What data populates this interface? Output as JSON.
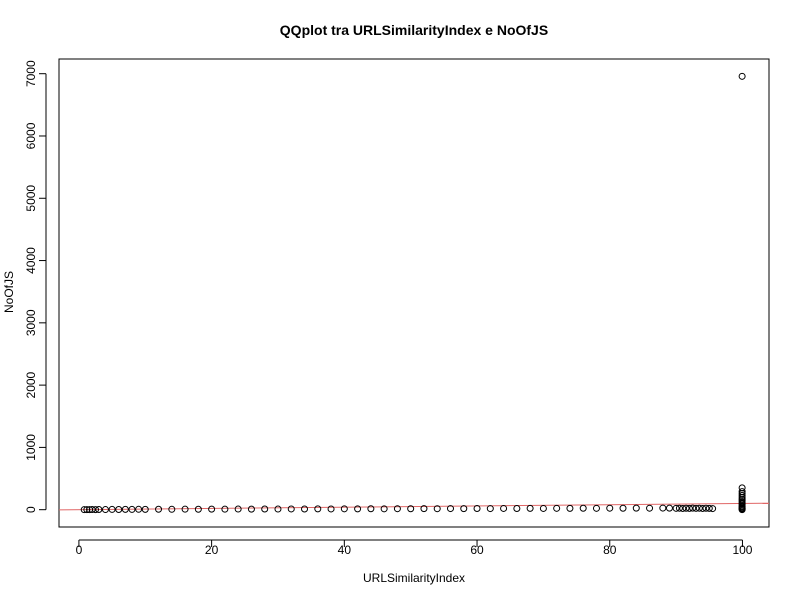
{
  "chart_data": {
    "type": "scatter",
    "title": "QQplot tra URLSimilarityIndex e NoOfJS",
    "xlabel": "URLSimilarityIndex",
    "ylabel": "NoOfJS",
    "xlim": [
      -3,
      104
    ],
    "ylim": [
      -278,
      7236
    ],
    "x_ticks": [
      0,
      20,
      40,
      60,
      80,
      100
    ],
    "y_ticks": [
      0,
      1000,
      2000,
      3000,
      4000,
      5000,
      6000,
      7000
    ],
    "grid": false,
    "legend": "none",
    "point_color": "#000000",
    "reference_line": {
      "color": "#e06666",
      "intercept": 0,
      "slope": 1
    },
    "series": [
      {
        "points": [
          [
            0.8,
            0
          ],
          [
            1.2,
            1
          ],
          [
            1.6,
            0
          ],
          [
            2,
            2
          ],
          [
            2.5,
            1
          ],
          [
            3,
            3
          ],
          [
            4,
            2
          ],
          [
            5,
            4
          ],
          [
            6,
            3
          ],
          [
            7,
            5
          ],
          [
            8,
            4
          ],
          [
            9,
            6
          ],
          [
            10,
            5
          ],
          [
            12,
            7
          ],
          [
            14,
            6
          ],
          [
            16,
            8
          ],
          [
            18,
            7
          ],
          [
            20,
            9
          ],
          [
            22,
            8
          ],
          [
            24,
            10
          ],
          [
            26,
            9
          ],
          [
            28,
            11
          ],
          [
            30,
            10
          ],
          [
            32,
            12
          ],
          [
            34,
            11
          ],
          [
            36,
            13
          ],
          [
            38,
            12
          ],
          [
            40,
            14
          ],
          [
            42,
            13
          ],
          [
            44,
            15
          ],
          [
            46,
            14
          ],
          [
            48,
            16
          ],
          [
            50,
            15
          ],
          [
            52,
            17
          ],
          [
            54,
            16
          ],
          [
            56,
            18
          ],
          [
            58,
            17
          ],
          [
            60,
            19
          ],
          [
            62,
            18
          ],
          [
            64,
            20
          ],
          [
            66,
            19
          ],
          [
            68,
            21
          ],
          [
            70,
            20
          ],
          [
            72,
            22
          ],
          [
            74,
            21
          ],
          [
            76,
            23
          ],
          [
            78,
            22
          ],
          [
            80,
            24
          ],
          [
            82,
            23
          ],
          [
            84,
            25
          ],
          [
            86,
            24
          ],
          [
            88,
            26
          ],
          [
            89,
            25
          ],
          [
            90,
            22
          ],
          [
            90.5,
            24
          ],
          [
            91,
            20
          ],
          [
            91.5,
            23
          ],
          [
            92,
            21
          ],
          [
            92.5,
            25
          ],
          [
            93,
            22
          ],
          [
            93.5,
            24
          ],
          [
            94,
            20
          ],
          [
            94.5,
            23
          ],
          [
            95,
            21
          ],
          [
            95.5,
            18
          ],
          [
            99.95,
            0
          ],
          [
            99.95,
            10
          ],
          [
            99.95,
            20
          ],
          [
            99.95,
            30
          ],
          [
            99.95,
            45
          ],
          [
            99.95,
            60
          ],
          [
            99.95,
            80
          ],
          [
            99.95,
            100
          ],
          [
            99.95,
            120
          ],
          [
            99.95,
            145
          ],
          [
            99.95,
            170
          ],
          [
            99.95,
            200
          ],
          [
            99.95,
            230
          ],
          [
            99.95,
            260
          ],
          [
            99.95,
            290
          ],
          [
            99.95,
            350
          ],
          [
            99.95,
            6958
          ]
        ]
      }
    ]
  }
}
